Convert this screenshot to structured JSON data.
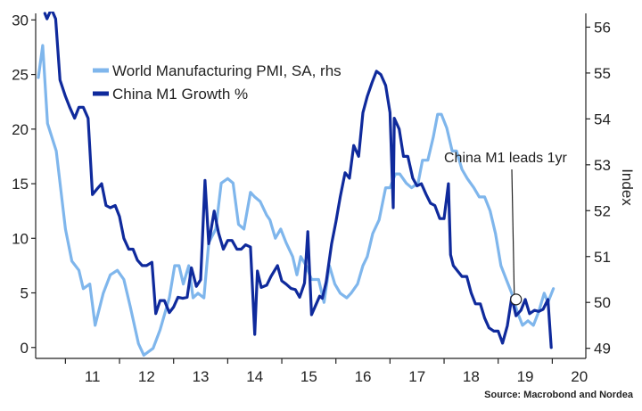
{
  "chart_data": {
    "type": "line",
    "title": "",
    "source": "Source: Macrobond and Nordea",
    "x_ticks": [
      "11",
      "12",
      "13",
      "14",
      "15",
      "16",
      "17",
      "18",
      "19",
      "20"
    ],
    "x_range": [
      2010.45,
      2020.62
    ],
    "y_left": {
      "label": "",
      "range": [
        -1,
        30.6
      ],
      "ticks": [
        0,
        5,
        10,
        15,
        20,
        25,
        30
      ]
    },
    "y_right": {
      "label": "Index",
      "range": [
        48.78,
        56.3
      ],
      "ticks": [
        49,
        50,
        51,
        52,
        53,
        54,
        55,
        56
      ]
    },
    "legend_position": "top-left",
    "series": [
      {
        "name": "World Manufacturing PMI, SA, rhs",
        "axis": "right",
        "color": "#7fb6ec",
        "points": [
          [
            2010.5,
            54.9
          ],
          [
            2010.58,
            55.6
          ],
          [
            2010.67,
            53.9
          ],
          [
            2010.83,
            53.3
          ],
          [
            2011.0,
            51.6
          ],
          [
            2011.12,
            50.9
          ],
          [
            2011.25,
            50.7
          ],
          [
            2011.33,
            50.3
          ],
          [
            2011.45,
            50.4
          ],
          [
            2011.55,
            49.5
          ],
          [
            2011.7,
            50.2
          ],
          [
            2011.83,
            50.6
          ],
          [
            2011.96,
            50.7
          ],
          [
            2012.08,
            50.5
          ],
          [
            2012.2,
            49.9
          ],
          [
            2012.35,
            49.1
          ],
          [
            2012.45,
            48.85
          ],
          [
            2012.62,
            49.0
          ],
          [
            2012.75,
            49.4
          ],
          [
            2012.92,
            50.1
          ],
          [
            2013.02,
            50.8
          ],
          [
            2013.1,
            50.8
          ],
          [
            2013.18,
            50.4
          ],
          [
            2013.28,
            50.8
          ],
          [
            2013.36,
            50.1
          ],
          [
            2013.45,
            50.2
          ],
          [
            2013.56,
            50.1
          ],
          [
            2013.65,
            51.3
          ],
          [
            2013.78,
            51.6
          ],
          [
            2013.88,
            52.6
          ],
          [
            2014.0,
            52.7
          ],
          [
            2014.1,
            52.6
          ],
          [
            2014.2,
            51.7
          ],
          [
            2014.3,
            51.6
          ],
          [
            2014.42,
            52.4
          ],
          [
            2014.5,
            52.3
          ],
          [
            2014.6,
            52.2
          ],
          [
            2014.72,
            51.9
          ],
          [
            2014.78,
            51.8
          ],
          [
            2014.88,
            51.4
          ],
          [
            2014.98,
            51.6
          ],
          [
            2015.08,
            51.3
          ],
          [
            2015.2,
            51.0
          ],
          [
            2015.28,
            50.6
          ],
          [
            2015.35,
            51.0
          ],
          [
            2015.45,
            50.8
          ],
          [
            2015.55,
            50.5
          ],
          [
            2015.68,
            50.5
          ],
          [
            2015.78,
            50.0
          ],
          [
            2015.88,
            50.8
          ],
          [
            2015.98,
            50.4
          ],
          [
            2016.08,
            50.2
          ],
          [
            2016.2,
            50.1
          ],
          [
            2016.28,
            50.2
          ],
          [
            2016.4,
            50.4
          ],
          [
            2016.5,
            50.8
          ],
          [
            2016.58,
            51.0
          ],
          [
            2016.68,
            51.5
          ],
          [
            2016.8,
            51.8
          ],
          [
            2016.92,
            52.5
          ],
          [
            2017.0,
            52.5
          ],
          [
            2017.1,
            52.8
          ],
          [
            2017.18,
            52.8
          ],
          [
            2017.3,
            52.6
          ],
          [
            2017.4,
            52.5
          ],
          [
            2017.52,
            52.6
          ],
          [
            2017.6,
            53.1
          ],
          [
            2017.7,
            53.1
          ],
          [
            2017.8,
            53.6
          ],
          [
            2017.88,
            54.1
          ],
          [
            2017.95,
            54.1
          ],
          [
            2018.05,
            53.8
          ],
          [
            2018.15,
            53.3
          ],
          [
            2018.23,
            53.3
          ],
          [
            2018.33,
            52.9
          ],
          [
            2018.43,
            52.7
          ],
          [
            2018.55,
            52.5
          ],
          [
            2018.65,
            52.3
          ],
          [
            2018.75,
            52.3
          ],
          [
            2018.85,
            52.0
          ],
          [
            2018.95,
            51.5
          ],
          [
            2019.05,
            50.8
          ],
          [
            2019.15,
            50.5
          ],
          [
            2019.25,
            50.2
          ],
          [
            2019.35,
            49.8
          ],
          [
            2019.45,
            49.5
          ],
          [
            2019.55,
            49.6
          ],
          [
            2019.65,
            49.5
          ],
          [
            2019.75,
            49.8
          ],
          [
            2019.85,
            50.2
          ],
          [
            2019.92,
            50.0
          ],
          [
            2020.02,
            50.3
          ]
        ]
      },
      {
        "name": "China M1 Growth %",
        "axis": "left",
        "color": "#0f2a9c",
        "points": [
          [
            2010.62,
            30.6
          ],
          [
            2010.66,
            30.1
          ],
          [
            2010.74,
            31.0
          ],
          [
            2010.82,
            30.1
          ],
          [
            2010.9,
            24.5
          ],
          [
            2011.0,
            23.0
          ],
          [
            2011.08,
            22.0
          ],
          [
            2011.17,
            21.0
          ],
          [
            2011.25,
            22.0
          ],
          [
            2011.33,
            22.0
          ],
          [
            2011.42,
            21.0
          ],
          [
            2011.5,
            14.0
          ],
          [
            2011.58,
            14.5
          ],
          [
            2011.67,
            15.0
          ],
          [
            2011.75,
            13.0
          ],
          [
            2011.83,
            12.8
          ],
          [
            2011.92,
            13.0
          ],
          [
            2012.0,
            12.0
          ],
          [
            2012.08,
            10.0
          ],
          [
            2012.17,
            9.0
          ],
          [
            2012.25,
            9.0
          ],
          [
            2012.33,
            8.0
          ],
          [
            2012.42,
            7.5
          ],
          [
            2012.5,
            7.5
          ],
          [
            2012.6,
            7.8
          ],
          [
            2012.67,
            3.1
          ],
          [
            2012.75,
            4.3
          ],
          [
            2012.83,
            4.3
          ],
          [
            2012.92,
            3.2
          ],
          [
            2013.0,
            3.7
          ],
          [
            2013.08,
            4.6
          ],
          [
            2013.17,
            4.5
          ],
          [
            2013.25,
            4.6
          ],
          [
            2013.33,
            7.3
          ],
          [
            2013.42,
            5.6
          ],
          [
            2013.5,
            6.2
          ],
          [
            2013.58,
            15.3
          ],
          [
            2013.65,
            9.5
          ],
          [
            2013.75,
            12.5
          ],
          [
            2013.83,
            10.5
          ],
          [
            2013.92,
            9.0
          ],
          [
            2014.0,
            9.8
          ],
          [
            2014.08,
            9.8
          ],
          [
            2014.17,
            9.0
          ],
          [
            2014.25,
            9.0
          ],
          [
            2014.33,
            9.4
          ],
          [
            2014.42,
            9.2
          ],
          [
            2014.5,
            1.2
          ],
          [
            2014.55,
            7.0
          ],
          [
            2014.62,
            5.5
          ],
          [
            2014.72,
            5.7
          ],
          [
            2014.8,
            6.5
          ],
          [
            2014.92,
            7.5
          ],
          [
            2015.0,
            6.1
          ],
          [
            2015.08,
            5.8
          ],
          [
            2015.17,
            5.4
          ],
          [
            2015.25,
            5.3
          ],
          [
            2015.33,
            4.6
          ],
          [
            2015.42,
            5.9
          ],
          [
            2015.48,
            10.6
          ],
          [
            2015.55,
            3.0
          ],
          [
            2015.62,
            3.8
          ],
          [
            2015.7,
            4.7
          ],
          [
            2015.75,
            4.5
          ],
          [
            2015.82,
            6.0
          ],
          [
            2015.92,
            9.5
          ],
          [
            2016.0,
            11.5
          ],
          [
            2016.08,
            13.8
          ],
          [
            2016.17,
            16.0
          ],
          [
            2016.25,
            15.5
          ],
          [
            2016.33,
            18.5
          ],
          [
            2016.42,
            17.5
          ],
          [
            2016.5,
            21.5
          ],
          [
            2016.58,
            23.0
          ],
          [
            2016.67,
            24.3
          ],
          [
            2016.75,
            25.3
          ],
          [
            2016.83,
            25.0
          ],
          [
            2016.92,
            24.0
          ],
          [
            2017.0,
            21.5
          ],
          [
            2017.06,
            12.8
          ],
          [
            2017.08,
            21.0
          ],
          [
            2017.17,
            20.0
          ],
          [
            2017.25,
            17.5
          ],
          [
            2017.33,
            17.5
          ],
          [
            2017.42,
            15.5
          ],
          [
            2017.5,
            14.8
          ],
          [
            2017.58,
            15.0
          ],
          [
            2017.67,
            14.0
          ],
          [
            2017.75,
            13.2
          ],
          [
            2017.83,
            13.0
          ],
          [
            2017.92,
            11.8
          ],
          [
            2018.0,
            11.8
          ],
          [
            2018.08,
            15.0
          ],
          [
            2018.12,
            8.5
          ],
          [
            2018.17,
            7.5
          ],
          [
            2018.25,
            7.0
          ],
          [
            2018.33,
            6.5
          ],
          [
            2018.42,
            6.5
          ],
          [
            2018.5,
            5.0
          ],
          [
            2018.58,
            4.0
          ],
          [
            2018.67,
            4.0
          ],
          [
            2018.75,
            2.7
          ],
          [
            2018.83,
            1.8
          ],
          [
            2018.92,
            1.5
          ],
          [
            2019.0,
            1.5
          ],
          [
            2019.08,
            0.4
          ],
          [
            2019.17,
            2.0
          ],
          [
            2019.25,
            4.6
          ],
          [
            2019.33,
            2.9
          ],
          [
            2019.42,
            3.4
          ],
          [
            2019.5,
            4.4
          ],
          [
            2019.58,
            3.1
          ],
          [
            2019.67,
            3.4
          ],
          [
            2019.75,
            3.3
          ],
          [
            2019.83,
            3.5
          ],
          [
            2019.92,
            4.4
          ],
          [
            2019.98,
            0.0
          ]
        ]
      }
    ],
    "annotations": [
      {
        "text": "China M1 leads 1yr",
        "point": [
          2019.33,
          4.4
        ]
      }
    ]
  }
}
